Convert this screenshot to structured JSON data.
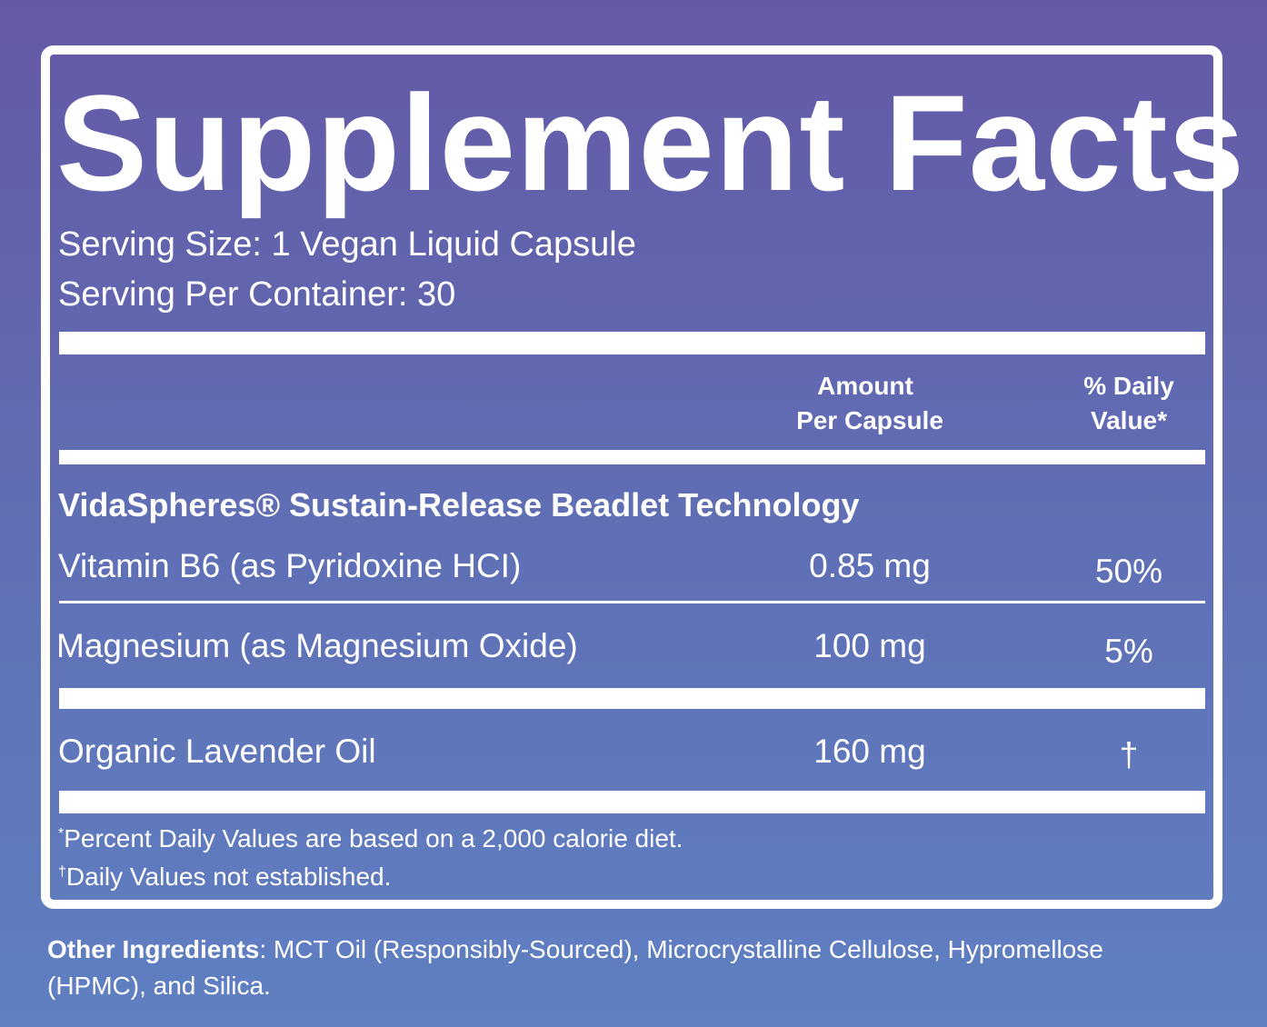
{
  "title": "Supplement Facts",
  "serving_size": "Serving Size: 1 Vegan Liquid Capsule",
  "servings_per_container": "Serving Per Container: 30",
  "columns": {
    "amount": [
      "Amount",
      "Per Capsule"
    ],
    "daily_value": [
      "% Daily",
      "Value*"
    ]
  },
  "section": "VidaSpheres® Sustain-Release Beadlet Technology",
  "rows": [
    {
      "name": "Vitamin B6 (as Pyridoxine HCI)",
      "amount": "0.85 mg",
      "daily_value": "50%"
    },
    {
      "name": "Magnesium (as Magnesium Oxide)",
      "amount": "100 mg",
      "daily_value": "5%"
    },
    {
      "name": "Organic Lavender Oil",
      "amount": "160 mg",
      "daily_value": "†"
    }
  ],
  "footnotes": [
    {
      "mark": "*",
      "text": "Percent Daily Values are based on a 2,000 calorie diet."
    },
    {
      "mark": "†",
      "text": "Daily Values not established."
    }
  ],
  "other_ingredients": {
    "label": "Other Ingredients",
    "text": ": MCT Oil (Responsibly-Sourced), Microcrystalline Cellulose, Hypromellose (HPMC), and Silica."
  }
}
